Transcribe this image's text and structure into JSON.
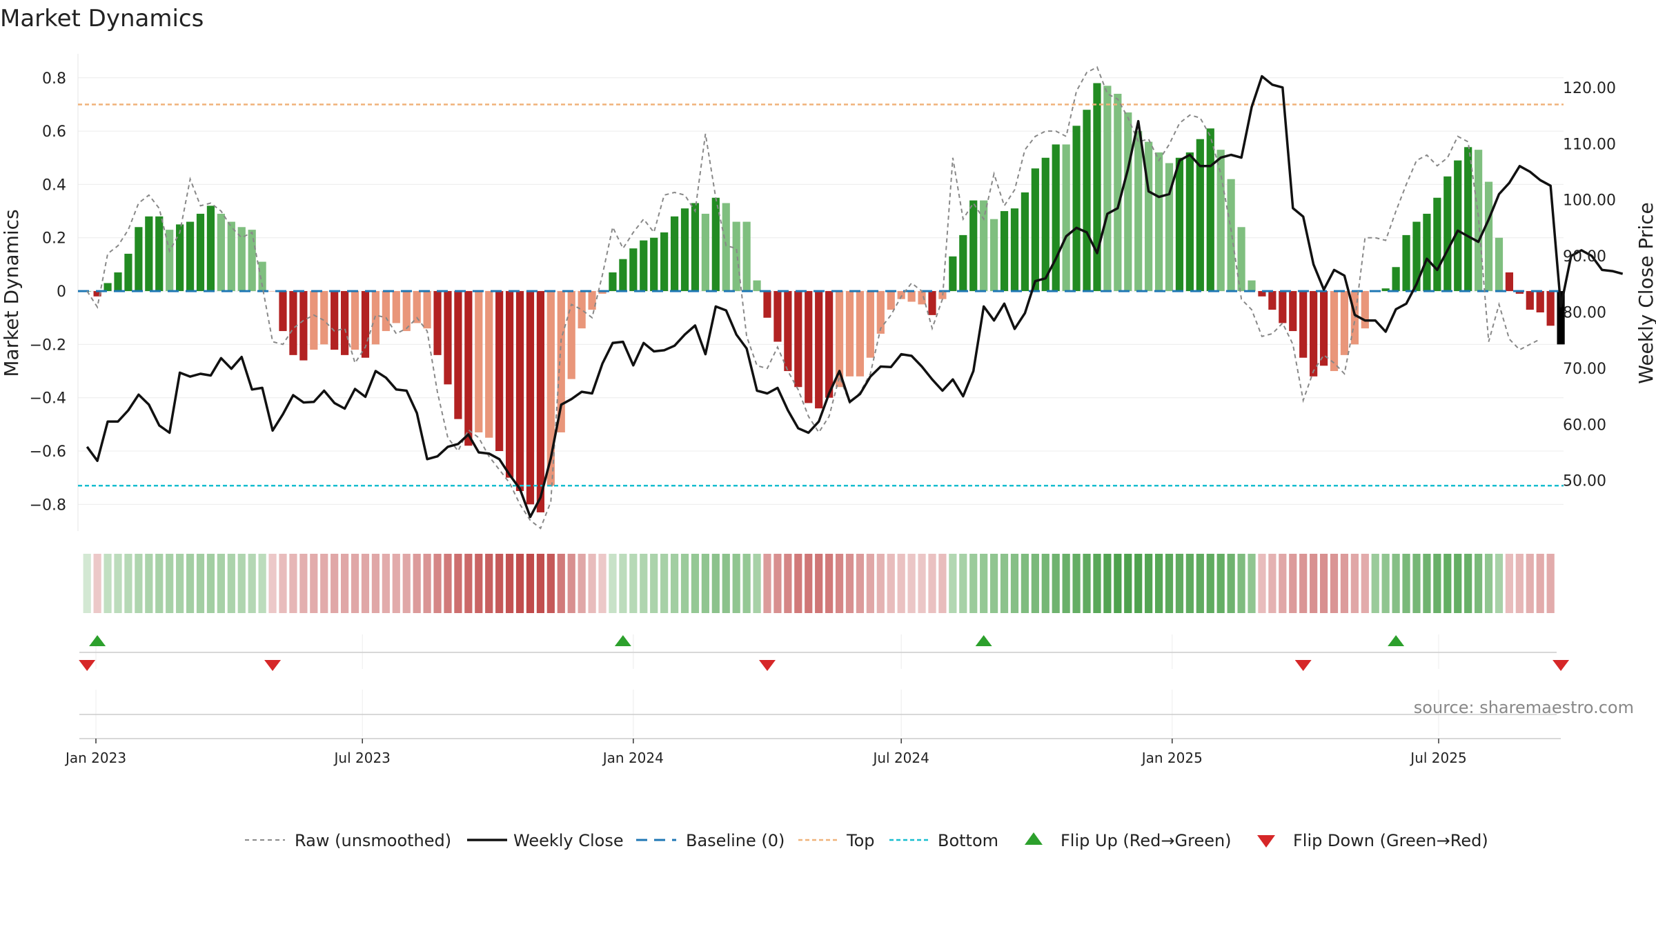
{
  "chart_data": {
    "type": "bar",
    "title": "Market Dynamics",
    "ylabel": "Market Dynamics",
    "y2label": "Weekly Close Price",
    "ylim": [
      -0.9,
      0.89
    ],
    "y2lim": [
      41.0,
      126.0
    ],
    "yticks": [
      "0.8",
      "0.6",
      "0.4",
      "0.2",
      "0",
      "−0.2",
      "−0.4",
      "−0.6",
      "−0.8"
    ],
    "y2ticks": [
      "120.00",
      "110.00",
      "100.00",
      "90.00",
      "80.00",
      "70.00",
      "60.00",
      "50.00"
    ],
    "xticks": [
      "Jan 2023",
      "Jul 2023",
      "Jan 2024",
      "Jul 2024",
      "Jan 2025",
      "Jul 2025"
    ],
    "x_start": "2022-12-26",
    "bar_width_weeks": 0.75,
    "thresholds": {
      "top": 0.7,
      "bottom": -0.73,
      "baseline": 0
    },
    "colors": {
      "strong_green": "#228b22",
      "light_green": "#7fbf7f",
      "strong_red": "#b22222",
      "light_red": "#e9967a",
      "raw": "#888888",
      "close": "#111111",
      "baseline": "#1f77b4",
      "top": "#f0b27a",
      "bottom": "#17becf",
      "flip_up": "#2ca02c",
      "flip_down": "#d62728"
    },
    "series": [
      {
        "name": "Market Dynamics",
        "values": [
          0.0,
          -0.02,
          0.03,
          0.07,
          0.14,
          0.24,
          0.28,
          0.28,
          0.23,
          0.25,
          0.26,
          0.29,
          0.32,
          0.29,
          0.26,
          0.24,
          0.23,
          0.11,
          -0.0,
          -0.15,
          -0.24,
          -0.26,
          -0.22,
          -0.2,
          -0.22,
          -0.24,
          -0.22,
          -0.25,
          -0.2,
          -0.15,
          -0.12,
          -0.15,
          -0.12,
          -0.14,
          -0.24,
          -0.35,
          -0.48,
          -0.58,
          -0.53,
          -0.55,
          -0.6,
          -0.7,
          -0.75,
          -0.8,
          -0.83,
          -0.73,
          -0.53,
          -0.33,
          -0.14,
          -0.07,
          -0.01,
          0.07,
          0.12,
          0.16,
          0.19,
          0.2,
          0.22,
          0.28,
          0.31,
          0.33,
          0.29,
          0.35,
          0.33,
          0.26,
          0.26,
          0.04,
          -0.1,
          -0.19,
          -0.3,
          -0.36,
          -0.42,
          -0.44,
          -0.4,
          -0.36,
          -0.32,
          -0.32,
          -0.25,
          -0.16,
          -0.07,
          -0.03,
          -0.04,
          -0.05,
          -0.09,
          -0.03,
          0.13,
          0.21,
          0.34,
          0.34,
          0.27,
          0.3,
          0.31,
          0.37,
          0.46,
          0.5,
          0.55,
          0.55,
          0.62,
          0.68,
          0.78,
          0.77,
          0.74,
          0.67,
          0.6,
          0.56,
          0.52,
          0.48,
          0.5,
          0.52,
          0.57,
          0.61,
          0.53,
          0.42,
          0.24,
          0.04,
          -0.02,
          -0.07,
          -0.12,
          -0.15,
          -0.25,
          -0.32,
          -0.28,
          -0.3,
          -0.24,
          -0.2,
          -0.14,
          -0.0,
          0.01,
          0.09,
          0.21,
          0.26,
          0.29,
          0.35,
          0.43,
          0.49,
          0.54,
          0.53,
          0.41,
          0.2,
          0.07,
          -0.01,
          -0.07,
          -0.08,
          -0.13,
          -0.2
        ],
        "colors": [
          "G",
          "R",
          "G",
          "G",
          "G",
          "G",
          "G",
          "G",
          "g",
          "G",
          "G",
          "G",
          "G",
          "g",
          "g",
          "g",
          "g",
          "g",
          "r",
          "R",
          "R",
          "R",
          "r",
          "r",
          "R",
          "R",
          "r",
          "R",
          "r",
          "r",
          "r",
          "r",
          "r",
          "r",
          "R",
          "R",
          "R",
          "R",
          "r",
          "r",
          "R",
          "R",
          "R",
          "R",
          "R",
          "r",
          "r",
          "r",
          "r",
          "r",
          "r",
          "G",
          "G",
          "G",
          "G",
          "G",
          "G",
          "G",
          "G",
          "G",
          "g",
          "G",
          "g",
          "g",
          "g",
          "g",
          "R",
          "R",
          "R",
          "R",
          "R",
          "R",
          "R",
          "r",
          "r",
          "r",
          "r",
          "r",
          "r",
          "r",
          "r",
          "r",
          "R",
          "r",
          "G",
          "G",
          "G",
          "g",
          "g",
          "G",
          "G",
          "G",
          "G",
          "G",
          "G",
          "g",
          "G",
          "G",
          "G",
          "g",
          "g",
          "g",
          "g",
          "g",
          "g",
          "g",
          "G",
          "G",
          "G",
          "G",
          "g",
          "g",
          "g",
          "g",
          "R",
          "R",
          "R",
          "R",
          "R",
          "R",
          "R",
          "r",
          "r",
          "r",
          "r",
          "g",
          "G",
          "G",
          "G",
          "G",
          "G",
          "G",
          "G",
          "G",
          "G",
          "g",
          "g",
          "g",
          "R",
          "R",
          "R",
          "R",
          "R"
        ]
      },
      {
        "name": "Raw (unsmoothed)",
        "values": [
          0.0,
          -0.06,
          0.14,
          0.17,
          0.23,
          0.33,
          0.36,
          0.31,
          0.15,
          0.22,
          0.42,
          0.32,
          0.33,
          0.3,
          0.24,
          0.2,
          0.22,
          0.02,
          -0.19,
          -0.2,
          -0.14,
          -0.11,
          -0.09,
          -0.11,
          -0.15,
          -0.14,
          -0.27,
          -0.21,
          -0.09,
          -0.1,
          -0.16,
          -0.14,
          -0.1,
          -0.15,
          -0.38,
          -0.55,
          -0.6,
          -0.52,
          -0.55,
          -0.62,
          -0.67,
          -0.72,
          -0.8,
          -0.86,
          -0.89,
          -0.79,
          -0.18,
          -0.05,
          -0.07,
          -0.1,
          0.06,
          0.24,
          0.16,
          0.22,
          0.27,
          0.22,
          0.36,
          0.37,
          0.36,
          0.3,
          0.59,
          0.35,
          0.17,
          0.16,
          -0.17,
          -0.28,
          -0.29,
          -0.21,
          -0.3,
          -0.37,
          -0.47,
          -0.53,
          -0.47,
          -0.32,
          -0.42,
          -0.38,
          -0.31,
          -0.14,
          -0.09,
          -0.02,
          0.03,
          0.0,
          -0.14,
          -0.03,
          0.5,
          0.27,
          0.33,
          0.27,
          0.44,
          0.32,
          0.38,
          0.53,
          0.58,
          0.6,
          0.6,
          0.58,
          0.75,
          0.82,
          0.84,
          0.74,
          0.72,
          0.65,
          0.56,
          0.57,
          0.49,
          0.55,
          0.63,
          0.66,
          0.65,
          0.58,
          0.44,
          0.23,
          -0.03,
          -0.07,
          -0.17,
          -0.16,
          -0.12,
          -0.2,
          -0.41,
          -0.3,
          -0.24,
          -0.27,
          -0.31,
          -0.11,
          0.2,
          0.2,
          0.19,
          0.3,
          0.4,
          0.49,
          0.51,
          0.47,
          0.5,
          0.58,
          0.56,
          0.28,
          -0.19,
          -0.05,
          -0.18,
          -0.22,
          -0.2,
          -0.18
        ]
      },
      {
        "name": "Weekly Close",
        "values": [
          56.0,
          53.5,
          60.5,
          60.5,
          62.5,
          65.3,
          63.5,
          59.8,
          58.5,
          69.2,
          68.5,
          69.0,
          68.7,
          71.8,
          69.9,
          72.0,
          66.2,
          66.5,
          58.9,
          61.8,
          65.2,
          63.9,
          64.0,
          66.0,
          63.8,
          62.8,
          66.3,
          64.9,
          69.5,
          68.3,
          66.2,
          66.0,
          62.0,
          53.8,
          54.3,
          56.0,
          56.5,
          58.2,
          55.0,
          54.8,
          53.8,
          51.0,
          48.5,
          43.5,
          47.0,
          54.0,
          63.5,
          64.5,
          65.8,
          65.5,
          70.8,
          74.5,
          74.7,
          70.5,
          74.5,
          73.0,
          73.2,
          74.0,
          76.0,
          77.6,
          72.5,
          81.0,
          80.3,
          76.0,
          73.5,
          66.0,
          65.5,
          66.5,
          62.5,
          59.3,
          58.5,
          60.5,
          65.5,
          69.5,
          64.0,
          65.4,
          68.5,
          70.3,
          70.2,
          72.5,
          72.2,
          70.3,
          68.0,
          66.0,
          68.0,
          65.0,
          69.5,
          81.0,
          78.5,
          81.5,
          77.0,
          79.8,
          85.5,
          86.0,
          89.5,
          93.5,
          95.0,
          94.2,
          90.5,
          97.5,
          98.5,
          105.5,
          114.0,
          101.5,
          100.5,
          101.0,
          107.0,
          108.0,
          106.0,
          106.0,
          107.5,
          108.0,
          107.5,
          116.5,
          122.0,
          120.5,
          120.0,
          98.5,
          97.0,
          88.5,
          84.0,
          87.5,
          86.5,
          79.5,
          78.5,
          78.5,
          76.5,
          80.5,
          81.5,
          85.0,
          89.5,
          87.5,
          91.0,
          94.5,
          93.5,
          92.5,
          96.5,
          101.0,
          103.0,
          106.0,
          105.0,
          103.5,
          102.5,
          81.0,
          90.0,
          91.0,
          90.0,
          87.5,
          87.3,
          86.8
        ]
      }
    ],
    "heat_strip": {
      "direction": [
        "g",
        "r",
        "g",
        "g",
        "g",
        "g",
        "g",
        "g",
        "g",
        "g",
        "g",
        "g",
        "g",
        "g",
        "g",
        "g",
        "g",
        "g",
        "r",
        "r",
        "r",
        "r",
        "r",
        "r",
        "r",
        "r",
        "r",
        "r",
        "r",
        "r",
        "r",
        "r",
        "r",
        "r",
        "r",
        "r",
        "r",
        "r",
        "r",
        "r",
        "r",
        "r",
        "r",
        "r",
        "r",
        "r",
        "r",
        "r",
        "r",
        "r",
        "r",
        "g",
        "g",
        "g",
        "g",
        "g",
        "g",
        "g",
        "g",
        "g",
        "g",
        "g",
        "g",
        "g",
        "g",
        "g",
        "r",
        "r",
        "r",
        "r",
        "r",
        "r",
        "r",
        "r",
        "r",
        "r",
        "r",
        "r",
        "r",
        "r",
        "r",
        "r",
        "r",
        "r",
        "g",
        "g",
        "g",
        "g",
        "g",
        "g",
        "g",
        "g",
        "g",
        "g",
        "g",
        "g",
        "g",
        "g",
        "g",
        "g",
        "g",
        "g",
        "g",
        "g",
        "g",
        "g",
        "g",
        "g",
        "g",
        "g",
        "g",
        "g",
        "g",
        "g",
        "r",
        "r",
        "r",
        "r",
        "r",
        "r",
        "r",
        "r",
        "r",
        "r",
        "r",
        "g",
        "g",
        "g",
        "g",
        "g",
        "g",
        "g",
        "g",
        "g",
        "g",
        "g",
        "g",
        "g",
        "r",
        "r",
        "r",
        "r",
        "r"
      ],
      "intensity": [
        0.2,
        0.25,
        0.28,
        0.3,
        0.33,
        0.36,
        0.38,
        0.4,
        0.4,
        0.4,
        0.42,
        0.42,
        0.42,
        0.4,
        0.38,
        0.36,
        0.34,
        0.3,
        0.25,
        0.3,
        0.33,
        0.36,
        0.38,
        0.38,
        0.4,
        0.4,
        0.4,
        0.4,
        0.4,
        0.38,
        0.38,
        0.4,
        0.45,
        0.48,
        0.55,
        0.6,
        0.65,
        0.68,
        0.7,
        0.72,
        0.75,
        0.78,
        0.8,
        0.82,
        0.8,
        0.75,
        0.6,
        0.5,
        0.4,
        0.3,
        0.25,
        0.25,
        0.3,
        0.33,
        0.36,
        0.38,
        0.4,
        0.42,
        0.45,
        0.48,
        0.5,
        0.52,
        0.52,
        0.5,
        0.48,
        0.4,
        0.45,
        0.5,
        0.55,
        0.6,
        0.62,
        0.62,
        0.6,
        0.55,
        0.5,
        0.45,
        0.4,
        0.35,
        0.3,
        0.28,
        0.26,
        0.26,
        0.28,
        0.3,
        0.35,
        0.4,
        0.45,
        0.48,
        0.5,
        0.52,
        0.55,
        0.58,
        0.6,
        0.62,
        0.65,
        0.68,
        0.7,
        0.72,
        0.75,
        0.78,
        0.8,
        0.8,
        0.8,
        0.78,
        0.76,
        0.74,
        0.72,
        0.72,
        0.72,
        0.72,
        0.7,
        0.65,
        0.58,
        0.5,
        0.3,
        0.35,
        0.4,
        0.45,
        0.48,
        0.5,
        0.5,
        0.48,
        0.45,
        0.4,
        0.38,
        0.45,
        0.5,
        0.55,
        0.6,
        0.62,
        0.65,
        0.68,
        0.7,
        0.7,
        0.68,
        0.6,
        0.5,
        0.4,
        0.3,
        0.33,
        0.36,
        0.38,
        0.38
      ]
    },
    "flips": {
      "up": [
        1,
        52,
        87,
        127
      ],
      "down": [
        0,
        18,
        66,
        118,
        143
      ]
    },
    "source": "source: sharemaestro.com",
    "legend": {
      "raw": "Raw (unsmoothed)",
      "close": "Weekly Close",
      "baseline": "Baseline (0)",
      "top": "Top",
      "bottom": "Bottom",
      "flip_up": "Flip Up (Red→Green)",
      "flip_down": "Flip Down (Green→Red)"
    }
  }
}
